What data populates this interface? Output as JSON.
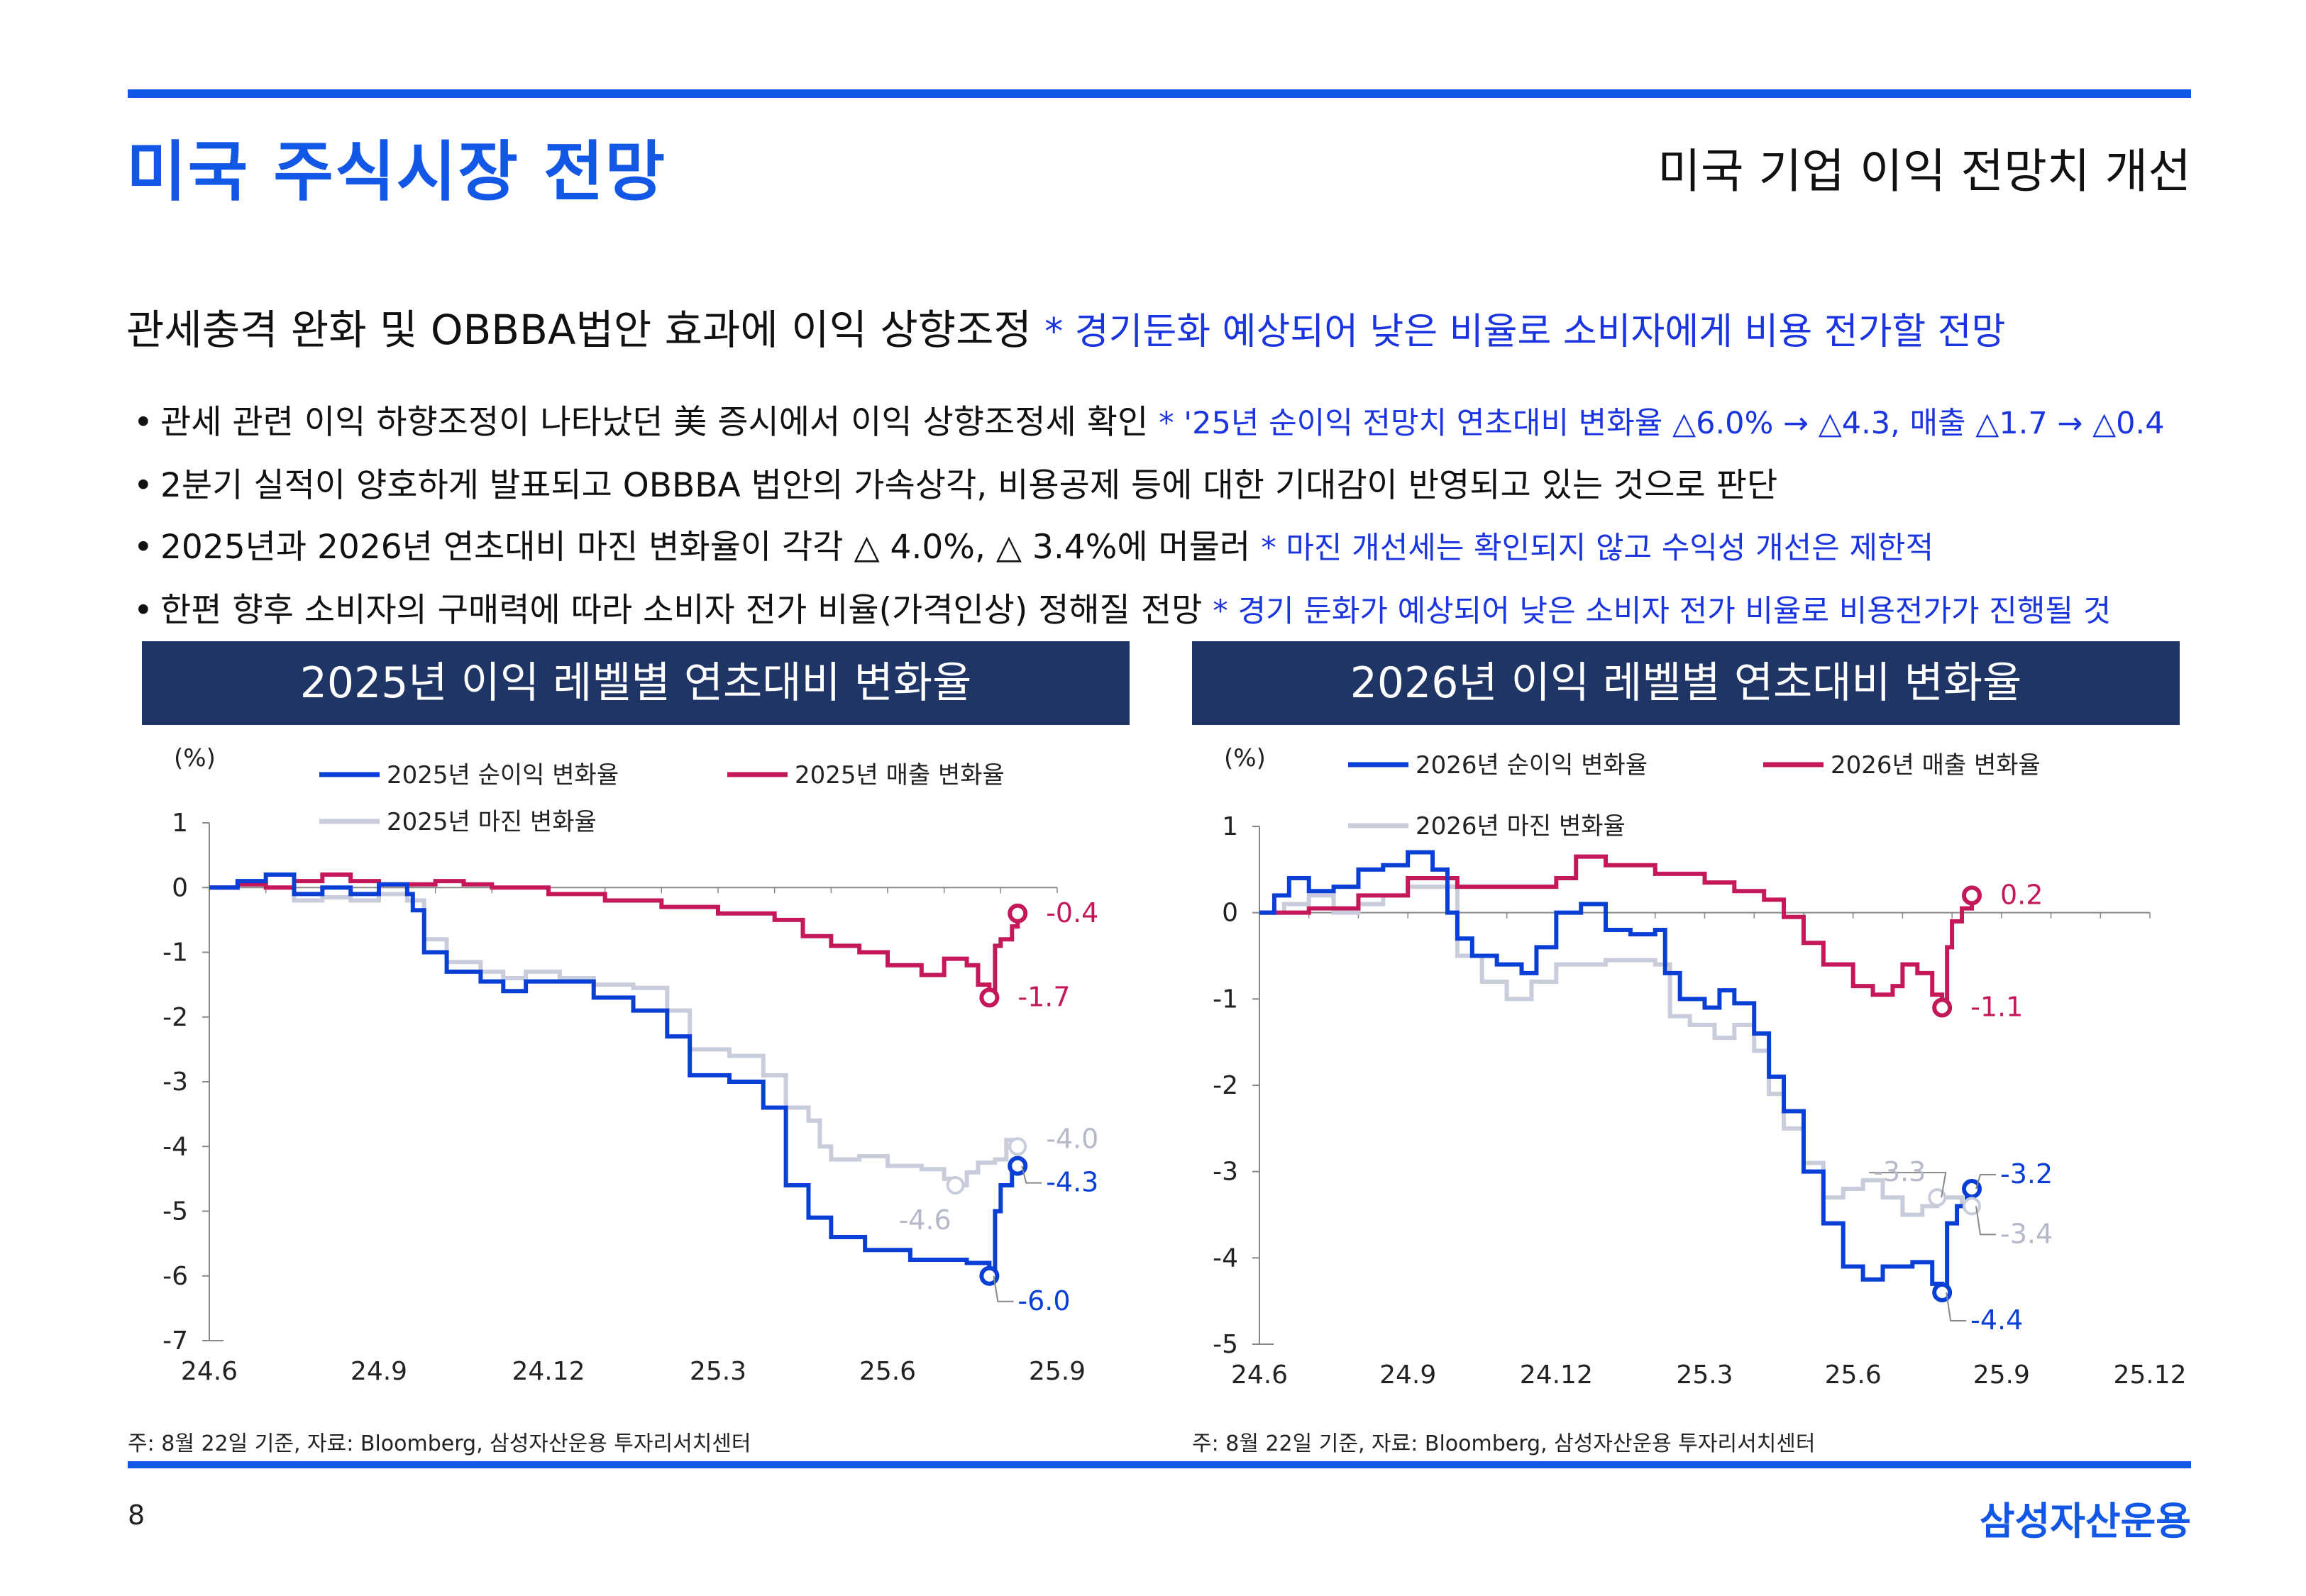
{
  "header": {
    "title": "미국 주식시장 전망",
    "subtitle": "미국 기업 이익 전망치 개선"
  },
  "headline": {
    "main": "관세충격 완화 및 OBBBA법안 효과에 이익 상향조정",
    "note": "* 경기둔화 예상되어 낮은 비율로 소비자에게 비용 전가할 전망"
  },
  "bullets": [
    {
      "text": "관세 관련 이익 하향조정이 나타났던 美 증시에서 이익 상향조정세 확인",
      "note": "* '25년 순이익 전망치 연초대비 변화율 △6.0% → △4.3, 매출 △1.7 → △0.4"
    },
    {
      "text": "2분기 실적이 양호하게 발표되고 OBBBA 법안의 가속상각, 비용공제 등에 대한 기대감이 반영되고 있는 것으로 판단",
      "note": ""
    },
    {
      "text": "2025년과 2026년 연초대비 마진 변화율이 각각 △ 4.0%, △ 3.4%에 머물러",
      "note": "* 마진 개선세는 확인되지 않고 수익성 개선은 제한적"
    },
    {
      "text": "한편 향후 소비자의 구매력에 따라 소비자 전가 비율(가격인상) 정해질 전망",
      "note": "* 경기 둔화가 예상되어 낮은 소비자 전가 비율로 비용전가가 진행될 것"
    }
  ],
  "footnotes": {
    "left": "주: 8월 22일 기준, 자료: Bloomberg, 삼성자산운용 투자리서치센터",
    "right": "주: 8월 22일 기준, 자료: Bloomberg, 삼성자산운용 투자리서치센터"
  },
  "page_number": "8",
  "logo": "삼성자산운용",
  "colors": {
    "accent": "#1257e6",
    "net_income": "#0a3fd6",
    "sales": "#c4185a",
    "margin": "#c9ccdb",
    "panel_header": "#1f3566"
  },
  "chart_data": [
    {
      "type": "line",
      "title": "2025년 이익 레벨별 연초대비 변화율",
      "ylabel": "(%)",
      "ylim": [
        -7,
        1
      ],
      "yticks": [
        1,
        0,
        -1,
        -2,
        -3,
        -4,
        -5,
        -6,
        -7
      ],
      "xticks": [
        "24.6",
        "24.9",
        "24.12",
        "25.3",
        "25.6",
        "25.9"
      ],
      "xlim": [
        0,
        15
      ],
      "grid": false,
      "legend_position": "top",
      "series": [
        {
          "name": "2025년 순이익 변화율",
          "color": "#0a3fd6",
          "end_label": "-6.0",
          "end_x": 13.8,
          "end_value": -6.0,
          "points": [
            [
              0,
              0
            ],
            [
              0.5,
              0.1
            ],
            [
              1,
              0.2
            ],
            [
              1.5,
              -0.1
            ],
            [
              2,
              0
            ],
            [
              2.5,
              -0.1
            ],
            [
              3,
              0.05
            ],
            [
              3.5,
              -0.1
            ],
            [
              3.6,
              -0.35
            ],
            [
              3.8,
              -1.0
            ],
            [
              4.2,
              -1.3
            ],
            [
              4.8,
              -1.45
            ],
            [
              5.2,
              -1.6
            ],
            [
              5.6,
              -1.45
            ],
            [
              6.2,
              -1.45
            ],
            [
              6.8,
              -1.7
            ],
            [
              7.5,
              -1.9
            ],
            [
              8.1,
              -2.3
            ],
            [
              8.5,
              -2.9
            ],
            [
              9.2,
              -3.0
            ],
            [
              9.8,
              -3.4
            ],
            [
              10.2,
              -4.6
            ],
            [
              10.6,
              -5.1
            ],
            [
              11.0,
              -5.4
            ],
            [
              11.6,
              -5.6
            ],
            [
              12.4,
              -5.75
            ],
            [
              13.4,
              -5.8
            ],
            [
              13.8,
              -6.0
            ],
            [
              13.9,
              -5.0
            ],
            [
              14.0,
              -4.6
            ],
            [
              14.2,
              -4.4
            ],
            [
              14.3,
              -4.3
            ]
          ]
        },
        {
          "name": "2025년 매출 변화율",
          "color": "#c4185a",
          "end_label": "-1.7",
          "end_x": 13.8,
          "end_value": -1.7,
          "points": [
            [
              0,
              0
            ],
            [
              0.5,
              0.05
            ],
            [
              1,
              0
            ],
            [
              1.5,
              0.1
            ],
            [
              2,
              0.2
            ],
            [
              2.5,
              0.1
            ],
            [
              3,
              0.05
            ],
            [
              3.5,
              0.05
            ],
            [
              4,
              0.1
            ],
            [
              4.5,
              0.05
            ],
            [
              5,
              0
            ],
            [
              6,
              -0.1
            ],
            [
              7,
              -0.2
            ],
            [
              8,
              -0.3
            ],
            [
              9,
              -0.4
            ],
            [
              10,
              -0.5
            ],
            [
              10.5,
              -0.75
            ],
            [
              11,
              -0.9
            ],
            [
              11.5,
              -1.0
            ],
            [
              12,
              -1.2
            ],
            [
              12.6,
              -1.35
            ],
            [
              13.0,
              -1.1
            ],
            [
              13.4,
              -1.2
            ],
            [
              13.6,
              -1.5
            ],
            [
              13.8,
              -1.7
            ],
            [
              13.9,
              -0.9
            ],
            [
              14.0,
              -0.8
            ],
            [
              14.2,
              -0.6
            ],
            [
              14.3,
              -0.4
            ]
          ]
        },
        {
          "name": "2025년 마진 변화율",
          "color": "#c9ccdb",
          "end_label": "-4.0",
          "end_x": 14.3,
          "end_value": -4.0,
          "points": [
            [
              0,
              0
            ],
            [
              0.5,
              0.05
            ],
            [
              1,
              0
            ],
            [
              1.5,
              -0.2
            ],
            [
              2,
              -0.15
            ],
            [
              2.5,
              -0.2
            ],
            [
              3,
              -0.1
            ],
            [
              3.5,
              -0.2
            ],
            [
              3.8,
              -0.8
            ],
            [
              4.2,
              -1.15
            ],
            [
              4.8,
              -1.3
            ],
            [
              5.2,
              -1.4
            ],
            [
              5.6,
              -1.3
            ],
            [
              6.2,
              -1.4
            ],
            [
              6.8,
              -1.5
            ],
            [
              7.5,
              -1.55
            ],
            [
              8.1,
              -1.9
            ],
            [
              8.5,
              -2.5
            ],
            [
              9.2,
              -2.6
            ],
            [
              9.8,
              -2.9
            ],
            [
              10.2,
              -3.4
            ],
            [
              10.6,
              -3.6
            ],
            [
              10.8,
              -4.0
            ],
            [
              11.0,
              -4.2
            ],
            [
              11.5,
              -4.15
            ],
            [
              12.0,
              -4.3
            ],
            [
              12.6,
              -4.35
            ],
            [
              13.0,
              -4.5
            ],
            [
              13.2,
              -4.6
            ],
            [
              13.4,
              -4.4
            ],
            [
              13.6,
              -4.25
            ],
            [
              13.9,
              -4.2
            ],
            [
              14.1,
              -3.9
            ],
            [
              14.3,
              -4.0
            ]
          ]
        }
      ],
      "annotations": [
        {
          "text": "-0.4",
          "series": 1,
          "x": 14.3,
          "y": -0.4
        },
        {
          "text": "-1.7",
          "series": 1,
          "x": 13.8,
          "y": -1.7
        },
        {
          "text": "-4.0",
          "series": 2,
          "x": 14.3,
          "y": -4.0
        },
        {
          "text": "-4.3",
          "series": 0,
          "x": 14.3,
          "y": -4.3
        },
        {
          "text": "-4.6",
          "series": 2,
          "x": 13.2,
          "y": -4.6
        },
        {
          "text": "-6.0",
          "series": 0,
          "x": 13.8,
          "y": -6.0
        }
      ]
    },
    {
      "type": "line",
      "title": "2026년 이익 레벨별 연초대비 변화율",
      "ylabel": "(%)",
      "ylim": [
        -5,
        1
      ],
      "yticks": [
        1,
        0,
        -1,
        -2,
        -3,
        -4,
        -5
      ],
      "xticks": [
        "24.6",
        "24.9",
        "24.12",
        "25.3",
        "25.6",
        "25.9",
        "25.12"
      ],
      "xlim": [
        0,
        18
      ],
      "grid": false,
      "legend_position": "top",
      "series": [
        {
          "name": "2026년 순이익 변화율",
          "color": "#0a3fd6",
          "end_label": "-4.4",
          "end_x": 13.8,
          "end_value": -4.4,
          "points": [
            [
              0,
              0
            ],
            [
              0.3,
              0.2
            ],
            [
              0.6,
              0.4
            ],
            [
              1,
              0.25
            ],
            [
              1.5,
              0.3
            ],
            [
              2,
              0.5
            ],
            [
              2.5,
              0.55
            ],
            [
              3,
              0.7
            ],
            [
              3.5,
              0.5
            ],
            [
              3.8,
              0
            ],
            [
              4,
              -0.3
            ],
            [
              4.3,
              -0.5
            ],
            [
              4.8,
              -0.6
            ],
            [
              5.3,
              -0.7
            ],
            [
              5.6,
              -0.4
            ],
            [
              6,
              0.0
            ],
            [
              6.5,
              0.1
            ],
            [
              7,
              -0.2
            ],
            [
              7.5,
              -0.25
            ],
            [
              8,
              -0.2
            ],
            [
              8.2,
              -0.7
            ],
            [
              8.5,
              -1.0
            ],
            [
              9,
              -1.1
            ],
            [
              9.3,
              -0.9
            ],
            [
              9.6,
              -1.05
            ],
            [
              10,
              -1.4
            ],
            [
              10.3,
              -1.9
            ],
            [
              10.6,
              -2.3
            ],
            [
              11,
              -3.0
            ],
            [
              11.4,
              -3.6
            ],
            [
              11.8,
              -4.1
            ],
            [
              12.2,
              -4.25
            ],
            [
              12.6,
              -4.1
            ],
            [
              13.2,
              -4.05
            ],
            [
              13.6,
              -4.3
            ],
            [
              13.8,
              -4.4
            ],
            [
              13.9,
              -3.6
            ],
            [
              14.1,
              -3.4
            ],
            [
              14.3,
              -3.3
            ],
            [
              14.4,
              -3.2
            ]
          ]
        },
        {
          "name": "2026년 매출 변화율",
          "color": "#c4185a",
          "end_label": "-1.1",
          "end_x": 13.8,
          "end_value": -1.1,
          "points": [
            [
              0,
              0
            ],
            [
              1,
              0.05
            ],
            [
              2,
              0.2
            ],
            [
              3,
              0.4
            ],
            [
              4,
              0.3
            ],
            [
              5,
              0.3
            ],
            [
              6,
              0.4
            ],
            [
              6.4,
              0.65
            ],
            [
              7,
              0.55
            ],
            [
              8,
              0.45
            ],
            [
              9,
              0.35
            ],
            [
              9.6,
              0.25
            ],
            [
              10.2,
              0.15
            ],
            [
              10.6,
              -0.05
            ],
            [
              11,
              -0.35
            ],
            [
              11.4,
              -0.6
            ],
            [
              12,
              -0.85
            ],
            [
              12.4,
              -0.95
            ],
            [
              12.8,
              -0.85
            ],
            [
              13.0,
              -0.6
            ],
            [
              13.3,
              -0.7
            ],
            [
              13.6,
              -0.95
            ],
            [
              13.8,
              -1.1
            ],
            [
              13.9,
              -0.4
            ],
            [
              14.0,
              -0.1
            ],
            [
              14.2,
              0.05
            ],
            [
              14.4,
              0.2
            ]
          ]
        },
        {
          "name": "2026년 마진 변화율",
          "color": "#c9ccdb",
          "end_label": "-3.4",
          "end_x": 14.4,
          "end_value": -3.4,
          "points": [
            [
              0,
              0
            ],
            [
              0.5,
              0.1
            ],
            [
              1,
              0.2
            ],
            [
              1.5,
              0
            ],
            [
              2,
              0.1
            ],
            [
              2.5,
              0.2
            ],
            [
              3,
              0.3
            ],
            [
              3.5,
              0.3
            ],
            [
              4,
              -0.5
            ],
            [
              4.5,
              -0.8
            ],
            [
              5,
              -1.0
            ],
            [
              5.5,
              -0.8
            ],
            [
              6,
              -0.6
            ],
            [
              7,
              -0.55
            ],
            [
              8,
              -0.6
            ],
            [
              8.3,
              -1.2
            ],
            [
              8.7,
              -1.3
            ],
            [
              9.2,
              -1.45
            ],
            [
              9.6,
              -1.3
            ],
            [
              10,
              -1.6
            ],
            [
              10.3,
              -2.1
            ],
            [
              10.6,
              -2.5
            ],
            [
              11,
              -2.9
            ],
            [
              11.4,
              -3.3
            ],
            [
              11.8,
              -3.2
            ],
            [
              12.2,
              -3.1
            ],
            [
              12.6,
              -3.3
            ],
            [
              13.0,
              -3.5
            ],
            [
              13.4,
              -3.4
            ],
            [
              13.7,
              -3.3
            ],
            [
              14.0,
              -3.3
            ],
            [
              14.2,
              -3.4
            ],
            [
              14.4,
              -3.4
            ]
          ]
        }
      ],
      "annotations": [
        {
          "text": "0.2",
          "series": 1,
          "x": 14.4,
          "y": 0.2
        },
        {
          "text": "-1.1",
          "series": 1,
          "x": 13.8,
          "y": -1.1
        },
        {
          "text": "-3.3",
          "series": 2,
          "x": 13.7,
          "y": -3.3
        },
        {
          "text": "-3.2",
          "series": 0,
          "x": 14.4,
          "y": -3.2
        },
        {
          "text": "-3.4",
          "series": 2,
          "x": 14.4,
          "y": -3.4
        },
        {
          "text": "-4.4",
          "series": 0,
          "x": 13.8,
          "y": -4.4
        }
      ]
    }
  ]
}
